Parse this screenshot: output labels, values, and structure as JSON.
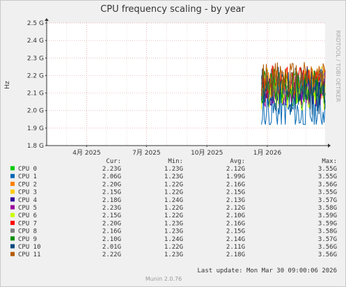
{
  "chart_data": {
    "type": "line",
    "title": "CPU frequency scaling - by year",
    "ylabel": "Hz",
    "side_label": "RRDTOOL / TOBI OETIKER",
    "ylim": [
      1.8,
      2.5
    ],
    "y_ticks": [
      {
        "v": 1.8,
        "label": "1.8 G"
      },
      {
        "v": 1.9,
        "label": "1.9 G"
      },
      {
        "v": 2.0,
        "label": "2.0 G"
      },
      {
        "v": 2.1,
        "label": "2.1 G"
      },
      {
        "v": 2.2,
        "label": "2.2 G"
      },
      {
        "v": 2.3,
        "label": "2.3 G"
      },
      {
        "v": 2.4,
        "label": "2.4 G"
      },
      {
        "v": 2.5,
        "label": "2.5 G"
      }
    ],
    "x_ticks": [
      "4月 2025",
      "7月 2025",
      "10月 2025",
      "1月 2026"
    ],
    "x_range": [
      "2025-01-30",
      "2026-03-30"
    ],
    "x_tick_dates": [
      "2025-04-01",
      "2025-07-01",
      "2025-10-01",
      "2026-01-01"
    ],
    "data_start": "2025-12-23",
    "data_end": "2026-03-30",
    "grid": true,
    "legend_headers": [
      "Cur:",
      "Min:",
      "Avg:",
      "Max:"
    ],
    "series": [
      {
        "name": "CPU 0",
        "color": "#00cc00",
        "cur": "2.23G",
        "min": "1.23G",
        "avg": "2.12G",
        "max": "3.55G"
      },
      {
        "name": "CPU 1",
        "color": "#0066b3",
        "cur": "2.06G",
        "min": "1.23G",
        "avg": "1.99G",
        "max": "3.55G"
      },
      {
        "name": "CPU 2",
        "color": "#ff8000",
        "cur": "2.20G",
        "min": "1.22G",
        "avg": "2.16G",
        "max": "3.56G"
      },
      {
        "name": "CPU 3",
        "color": "#ffcc00",
        "cur": "2.15G",
        "min": "1.22G",
        "avg": "2.15G",
        "max": "3.55G"
      },
      {
        "name": "CPU 4",
        "color": "#330099",
        "cur": "2.18G",
        "min": "1.24G",
        "avg": "2.13G",
        "max": "3.57G"
      },
      {
        "name": "CPU 5",
        "color": "#990099",
        "cur": "2.23G",
        "min": "1.22G",
        "avg": "2.12G",
        "max": "3.58G"
      },
      {
        "name": "CPU 6",
        "color": "#ccff00",
        "cur": "2.15G",
        "min": "1.22G",
        "avg": "2.10G",
        "max": "3.59G"
      },
      {
        "name": "CPU 7",
        "color": "#ff0000",
        "cur": "2.20G",
        "min": "1.23G",
        "avg": "2.16G",
        "max": "3.59G"
      },
      {
        "name": "CPU 8",
        "color": "#808080",
        "cur": "2.16G",
        "min": "1.23G",
        "avg": "2.15G",
        "max": "3.58G"
      },
      {
        "name": "CPU 9",
        "color": "#008f00",
        "cur": "2.10G",
        "min": "1.24G",
        "avg": "2.14G",
        "max": "3.57G"
      },
      {
        "name": "CPU 10",
        "color": "#00487d",
        "cur": "2.01G",
        "min": "1.22G",
        "avg": "2.11G",
        "max": "3.56G"
      },
      {
        "name": "CPU 11",
        "color": "#b35a00",
        "cur": "2.22G",
        "min": "1.23G",
        "avg": "2.18G",
        "max": "3.56G"
      }
    ],
    "last_update": "Last update: Mon Mar 30 09:00:06 2026",
    "footer": "Munin 2.0.76"
  }
}
